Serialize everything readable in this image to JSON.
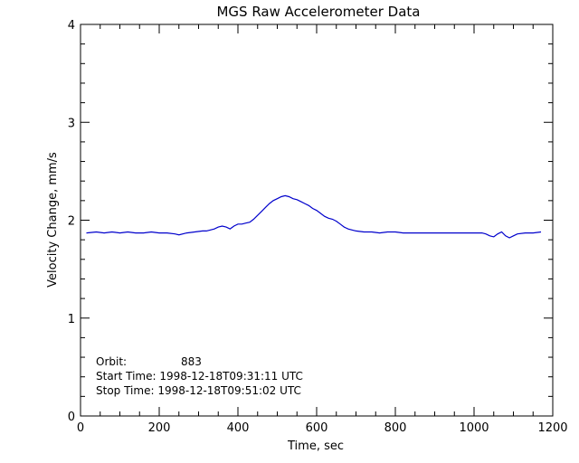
{
  "chart_data": {
    "type": "line",
    "title": "MGS Raw Accelerometer Data",
    "xlabel": "Time, sec",
    "ylabel": "Velocity Change, mm/s",
    "xlim": [
      0,
      1200
    ],
    "ylim": [
      0,
      4
    ],
    "xticks": [
      "0",
      "200",
      "400",
      "600",
      "800",
      "1000",
      "1200"
    ],
    "yticks": [
      "0",
      "1",
      "2",
      "3",
      "4"
    ],
    "grid": false,
    "line_color": "#0000cc",
    "annotations": {
      "orbit_label": "Orbit:",
      "orbit_value": "883",
      "start_time": "Start Time: 1998-12-18T09:31:11 UTC",
      "stop_time": "Stop Time: 1998-12-18T09:51:02 UTC"
    },
    "series": [
      {
        "x": [
          15,
          40,
          60,
          80,
          100,
          120,
          140,
          160,
          180,
          200,
          220,
          240,
          250,
          270,
          290,
          310,
          320,
          340,
          350,
          360,
          370,
          380,
          390,
          400,
          410,
          420,
          430,
          440,
          450,
          460,
          470,
          480,
          490,
          500,
          510,
          520,
          530,
          540,
          550,
          560,
          570,
          580,
          590,
          600,
          610,
          620,
          630,
          640,
          650,
          660,
          670,
          680,
          690,
          700,
          720,
          740,
          760,
          780,
          800,
          820,
          840,
          860,
          880,
          900,
          920,
          940,
          960,
          980,
          1000,
          1020,
          1030,
          1040,
          1050,
          1060,
          1070,
          1080,
          1090,
          1100,
          1110,
          1130,
          1150,
          1170
        ],
        "y": [
          1.87,
          1.88,
          1.87,
          1.88,
          1.87,
          1.88,
          1.87,
          1.87,
          1.88,
          1.87,
          1.87,
          1.86,
          1.85,
          1.87,
          1.88,
          1.89,
          1.89,
          1.91,
          1.93,
          1.94,
          1.93,
          1.91,
          1.94,
          1.96,
          1.96,
          1.97,
          1.98,
          2.01,
          2.05,
          2.09,
          2.13,
          2.17,
          2.2,
          2.22,
          2.24,
          2.25,
          2.24,
          2.22,
          2.21,
          2.19,
          2.17,
          2.15,
          2.12,
          2.1,
          2.07,
          2.04,
          2.02,
          2.01,
          1.99,
          1.96,
          1.93,
          1.91,
          1.9,
          1.89,
          1.88,
          1.88,
          1.87,
          1.88,
          1.88,
          1.87,
          1.87,
          1.87,
          1.87,
          1.87,
          1.87,
          1.87,
          1.87,
          1.87,
          1.87,
          1.87,
          1.86,
          1.84,
          1.83,
          1.86,
          1.88,
          1.84,
          1.82,
          1.84,
          1.86,
          1.87,
          1.87,
          1.88
        ]
      }
    ]
  }
}
